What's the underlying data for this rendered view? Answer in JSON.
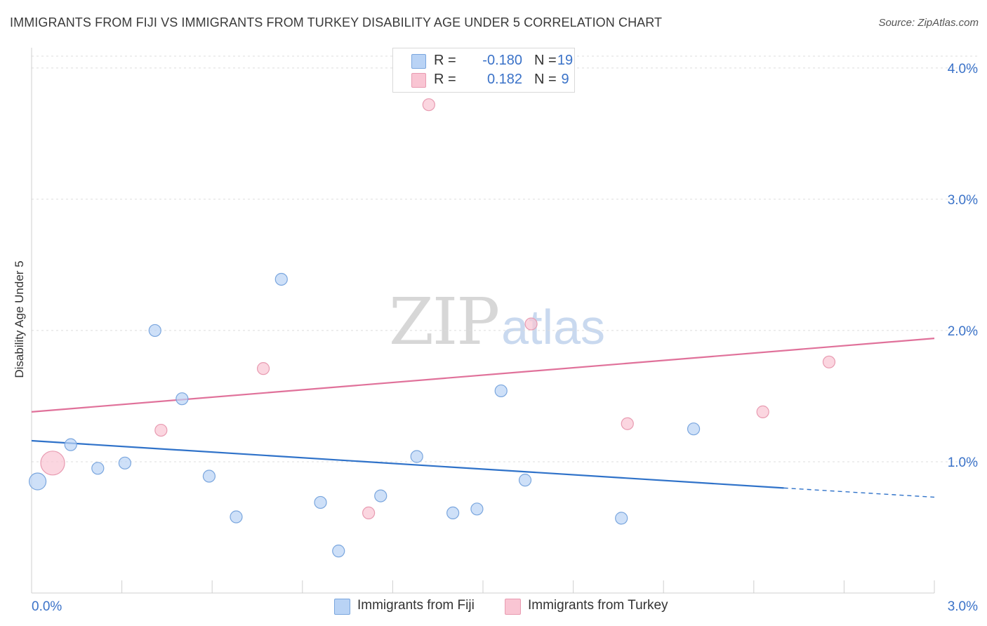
{
  "title": "IMMIGRANTS FROM FIJI VS IMMIGRANTS FROM TURKEY DISABILITY AGE UNDER 5 CORRELATION CHART",
  "source": "Source: ZipAtlas.com",
  "watermark": {
    "zip": "ZIP",
    "atlas": "atlas"
  },
  "colors": {
    "fiji_fill": "#b9d3f5",
    "fiji_stroke": "#7aa6de",
    "fiji_line": "#2f72c9",
    "turkey_fill": "#f9c5d3",
    "turkey_stroke": "#e89bb1",
    "turkey_line": "#e0719a",
    "tick_label": "#3a72c8"
  },
  "legend": {
    "rows": [
      {
        "r_label": "R =",
        "r_value": "-0.180",
        "n_label": "N =",
        "n_value": "19"
      },
      {
        "r_label": "R =",
        "r_value": "0.182",
        "n_label": "N =",
        "n_value": "9"
      }
    ]
  },
  "bottom_legend": {
    "fiji": "Immigrants from Fiji",
    "turkey": "Immigrants from Turkey"
  },
  "chart_data": {
    "type": "scatter",
    "title": "IMMIGRANTS FROM FIJI VS IMMIGRANTS FROM TURKEY DISABILITY AGE UNDER 5 CORRELATION CHART",
    "xlabel": "",
    "ylabel": "Disability Age Under 5",
    "xlim": [
      0,
      3.0
    ],
    "ylim": [
      0,
      4.0
    ],
    "x_tick_labels": [
      "0.0%",
      "3.0%"
    ],
    "y_ticks": [
      1.0,
      2.0,
      3.0,
      4.0
    ],
    "y_tick_labels": [
      "1.0%",
      "2.0%",
      "3.0%",
      "4.0%"
    ],
    "grid": true,
    "legend_position": "top-center",
    "series": [
      {
        "name": "Immigrants from Fiji",
        "r": -0.18,
        "n": 19,
        "points": [
          {
            "x": 0.02,
            "y": 0.85,
            "size": "large"
          },
          {
            "x": 0.13,
            "y": 1.13
          },
          {
            "x": 0.22,
            "y": 0.95
          },
          {
            "x": 0.31,
            "y": 0.99
          },
          {
            "x": 0.41,
            "y": 2.0
          },
          {
            "x": 0.5,
            "y": 1.48
          },
          {
            "x": 0.59,
            "y": 0.89
          },
          {
            "x": 0.68,
            "y": 0.58
          },
          {
            "x": 0.83,
            "y": 2.39
          },
          {
            "x": 0.96,
            "y": 0.69
          },
          {
            "x": 1.02,
            "y": 0.32
          },
          {
            "x": 1.16,
            "y": 0.74
          },
          {
            "x": 1.28,
            "y": 1.04
          },
          {
            "x": 1.4,
            "y": 0.61
          },
          {
            "x": 1.48,
            "y": 0.64
          },
          {
            "x": 1.56,
            "y": 1.54
          },
          {
            "x": 1.64,
            "y": 0.86
          },
          {
            "x": 1.96,
            "y": 0.57
          },
          {
            "x": 2.2,
            "y": 1.25
          }
        ],
        "trend": {
          "x0": 0.0,
          "y0": 1.16,
          "x1": 2.5,
          "y1": 0.8,
          "dashed_to_x": 3.0,
          "dashed_to_y": 0.73
        }
      },
      {
        "name": "Immigrants from Turkey",
        "r": 0.182,
        "n": 9,
        "points": [
          {
            "x": 0.07,
            "y": 0.99,
            "size": "large"
          },
          {
            "x": 0.43,
            "y": 1.24
          },
          {
            "x": 0.77,
            "y": 1.71
          },
          {
            "x": 1.12,
            "y": 0.61
          },
          {
            "x": 1.32,
            "y": 3.72
          },
          {
            "x": 1.66,
            "y": 2.05
          },
          {
            "x": 1.98,
            "y": 1.29
          },
          {
            "x": 2.43,
            "y": 1.38
          },
          {
            "x": 2.65,
            "y": 1.76
          }
        ],
        "trend": {
          "x0": 0.0,
          "y0": 1.38,
          "x1": 3.0,
          "y1": 1.94
        }
      }
    ]
  }
}
